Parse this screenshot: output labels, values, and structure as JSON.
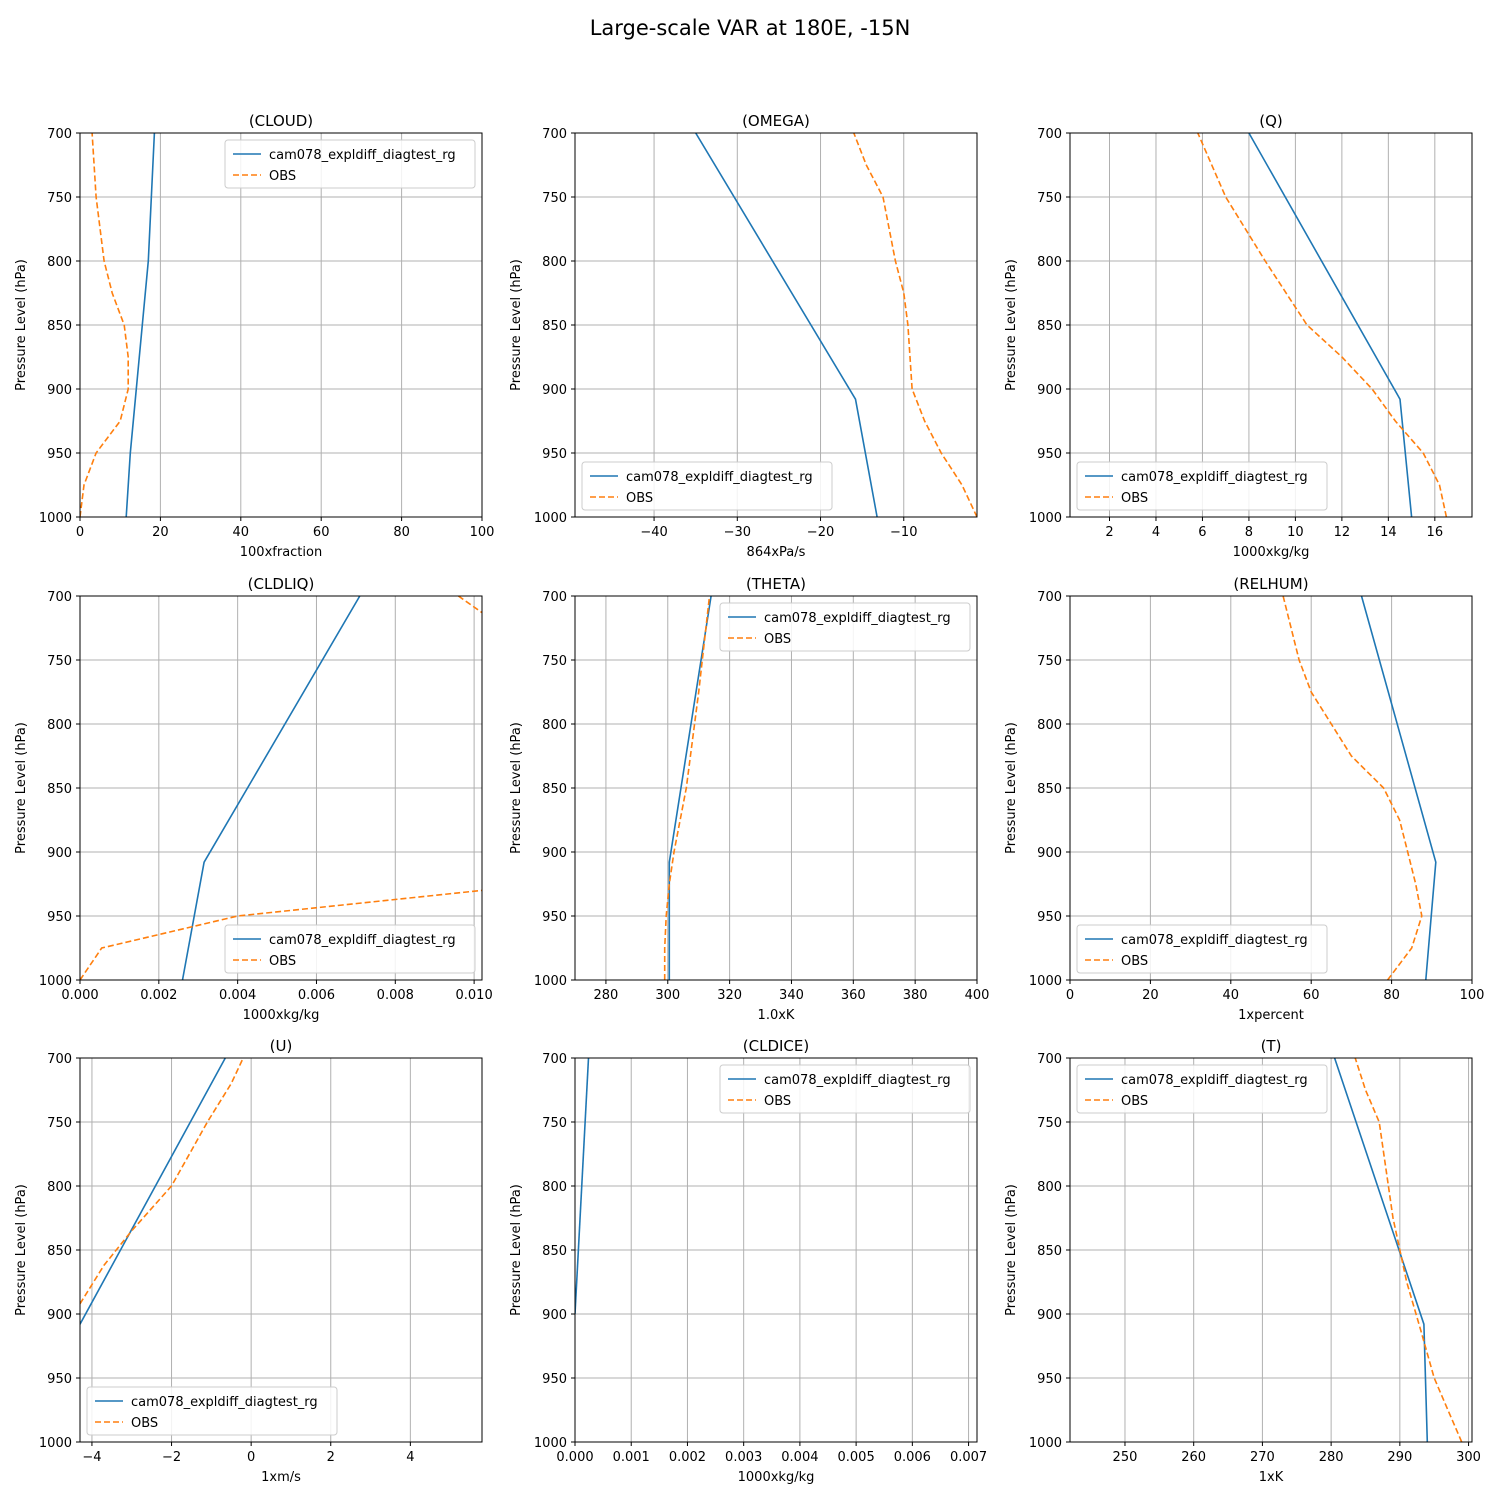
{
  "figure": {
    "title": "Large-scale VAR at 180E, -15N"
  },
  "colors": {
    "model": "#1f77b4",
    "obs": "#ff7f0e",
    "grid": "#b0b0b0"
  },
  "chart_data": [
    {
      "type": "line",
      "title": "(CLOUD)",
      "xlabel": "100xfraction",
      "ylabel": "Pressure Level (hPa)",
      "xlim": [
        0,
        100
      ],
      "xticks": [
        0,
        20,
        40,
        60,
        80,
        100
      ],
      "xtick_labels": [
        "0",
        "20",
        "40",
        "60",
        "80",
        "100"
      ],
      "ylim": [
        1000,
        700
      ],
      "yticks": [
        700,
        750,
        800,
        850,
        900,
        950,
        1000
      ],
      "grid": true,
      "legend": "upper right",
      "series": [
        {
          "name": "cam078_expldiff_diagtest_rg",
          "style": "solid",
          "color": "#1f77b4",
          "x": [
            11.5,
            12.5,
            14,
            15.5,
            17,
            18.5
          ],
          "y": [
            1000,
            950,
            900,
            850,
            800,
            700
          ]
        },
        {
          "name": "OBS",
          "style": "dashed",
          "color": "#ff7f0e",
          "x": [
            0,
            1,
            4,
            10,
            12,
            12,
            11,
            8,
            6,
            4,
            3.5,
            3
          ],
          "y": [
            1000,
            975,
            950,
            925,
            900,
            875,
            850,
            825,
            800,
            750,
            725,
            700
          ]
        }
      ]
    },
    {
      "type": "line",
      "title": "(OMEGA)",
      "xlabel": "864xPa/s",
      "ylabel": "Pressure Level (hPa)",
      "xlim": [
        -49.5,
        -1.2
      ],
      "xticks": [
        -40,
        -30,
        -20,
        -10
      ],
      "xtick_labels": [
        "−40",
        "−30",
        "−20",
        "−10"
      ],
      "ylim": [
        1000,
        700
      ],
      "yticks": [
        700,
        750,
        800,
        850,
        900,
        950,
        1000
      ],
      "grid": true,
      "legend": "lower left",
      "series": [
        {
          "name": "cam078_expldiff_diagtest_rg",
          "style": "solid",
          "color": "#1f77b4",
          "x": [
            -13.2,
            -15.8,
            -35
          ],
          "y": [
            1000,
            908,
            700
          ]
        },
        {
          "name": "OBS",
          "style": "dashed",
          "color": "#ff7f0e",
          "x": [
            -1.2,
            -3,
            -5.5,
            -7.5,
            -9,
            -9.5,
            -10,
            -11,
            -12.5,
            -14.5,
            -16
          ],
          "y": [
            1000,
            975,
            950,
            925,
            900,
            850,
            825,
            800,
            750,
            725,
            700
          ]
        }
      ]
    },
    {
      "type": "line",
      "title": "(Q)",
      "xlabel": "1000xkg/kg",
      "ylabel": "Pressure Level (hPa)",
      "xlim": [
        0.3,
        17.6
      ],
      "xticks": [
        2,
        4,
        6,
        8,
        10,
        12,
        14,
        16
      ],
      "xtick_labels": [
        "2",
        "4",
        "6",
        "8",
        "10",
        "12",
        "14",
        "16"
      ],
      "ylim": [
        1000,
        700
      ],
      "yticks": [
        700,
        750,
        800,
        850,
        900,
        950,
        1000
      ],
      "grid": true,
      "legend": "lower left",
      "series": [
        {
          "name": "cam078_expldiff_diagtest_rg",
          "style": "solid",
          "color": "#1f77b4",
          "x": [
            15.0,
            14.5,
            8.0
          ],
          "y": [
            1000,
            908,
            700
          ]
        },
        {
          "name": "OBS",
          "style": "dashed",
          "color": "#ff7f0e",
          "x": [
            16.5,
            16.2,
            15.5,
            14.3,
            13.3,
            12,
            10.5,
            8.7,
            7.0,
            5.8
          ],
          "y": [
            1000,
            975,
            950,
            925,
            900,
            875,
            850,
            800,
            750,
            700
          ]
        }
      ]
    },
    {
      "type": "line",
      "title": "(CLDLIQ)",
      "xlabel": "1000xkg/kg",
      "ylabel": "Pressure Level (hPa)",
      "xlim": [
        0,
        0.0102
      ],
      "xticks": [
        0,
        0.002,
        0.004,
        0.006,
        0.008,
        0.01
      ],
      "xtick_labels": [
        "0.000",
        "0.002",
        "0.004",
        "0.006",
        "0.008",
        "0.010"
      ],
      "ylim": [
        1000,
        700
      ],
      "yticks": [
        700,
        750,
        800,
        850,
        900,
        950,
        1000
      ],
      "grid": true,
      "legend": "lower right",
      "series": [
        {
          "name": "cam078_expldiff_diagtest_rg",
          "style": "solid",
          "color": "#1f77b4",
          "x": [
            0.0026,
            0.00315,
            0.0071
          ],
          "y": [
            1000,
            908,
            700
          ]
        },
        {
          "name": "OBS",
          "style": "dashed",
          "color": "#ff7f0e",
          "x": [
            0,
            0.00055,
            0.004,
            0.0102
          ],
          "y": [
            1000,
            975,
            950,
            930
          ]
        },
        {
          "name": "",
          "style": "dashed",
          "color": "#ff7f0e",
          "x": [
            0.0096,
            0.0102
          ],
          "y": [
            700,
            713
          ]
        }
      ]
    },
    {
      "type": "line",
      "title": "(THETA)",
      "xlabel": "1.0xK",
      "ylabel": "Pressure Level (hPa)",
      "xlim": [
        270,
        400
      ],
      "xticks": [
        280,
        300,
        320,
        340,
        360,
        380,
        400
      ],
      "xtick_labels": [
        "280",
        "300",
        "320",
        "340",
        "360",
        "380",
        "400"
      ],
      "ylim": [
        1000,
        700
      ],
      "yticks": [
        700,
        750,
        800,
        850,
        900,
        950,
        1000
      ],
      "grid": true,
      "legend": "upper right",
      "series": [
        {
          "name": "cam078_expldiff_diagtest_rg",
          "style": "solid",
          "color": "#1f77b4",
          "x": [
            300.5,
            300.5,
            314
          ],
          "y": [
            1000,
            908,
            700
          ]
        },
        {
          "name": "OBS",
          "style": "dashed",
          "color": "#ff7f0e",
          "x": [
            299,
            299,
            299.5,
            300.5,
            302,
            306,
            310,
            313.5
          ],
          "y": [
            1000,
            975,
            950,
            925,
            900,
            850,
            775,
            700
          ]
        }
      ]
    },
    {
      "type": "line",
      "title": "(RELHUM)",
      "xlabel": "1xpercent",
      "ylabel": "Pressure Level (hPa)",
      "xlim": [
        0,
        100
      ],
      "xticks": [
        0,
        20,
        40,
        60,
        80,
        100
      ],
      "xtick_labels": [
        "0",
        "20",
        "40",
        "60",
        "80",
        "100"
      ],
      "ylim": [
        1000,
        700
      ],
      "yticks": [
        700,
        750,
        800,
        850,
        900,
        950,
        1000
      ],
      "grid": true,
      "legend": "lower left",
      "series": [
        {
          "name": "cam078_expldiff_diagtest_rg",
          "style": "solid",
          "color": "#1f77b4",
          "x": [
            88.5,
            91,
            72.5
          ],
          "y": [
            1000,
            908,
            700
          ]
        },
        {
          "name": "OBS",
          "style": "dashed",
          "color": "#ff7f0e",
          "x": [
            79,
            85,
            87.5,
            86,
            84,
            82,
            78,
            70,
            65,
            60,
            57,
            53
          ],
          "y": [
            1000,
            975,
            950,
            925,
            900,
            875,
            850,
            825,
            800,
            775,
            750,
            700
          ]
        }
      ]
    },
    {
      "type": "line",
      "title": "(U)",
      "xlabel": "1xm/s",
      "ylabel": "Pressure Level (hPa)",
      "xlim": [
        -4.3,
        5.8
      ],
      "xticks": [
        -4,
        -2,
        0,
        2,
        4
      ],
      "xtick_labels": [
        "−4",
        "−2",
        "0",
        "2",
        "4"
      ],
      "ylim": [
        1000,
        700
      ],
      "yticks": [
        700,
        750,
        800,
        850,
        900,
        950,
        1000
      ],
      "grid": true,
      "legend": "lower left",
      "series": [
        {
          "name": "cam078_expldiff_diagtest_rg",
          "style": "solid",
          "color": "#1f77b4",
          "x": [
            -4.3,
            -0.65
          ],
          "y": [
            908,
            700
          ]
        },
        {
          "name": "OBS",
          "style": "dashed",
          "color": "#ff7f0e",
          "x": [
            -4.3,
            -3.7,
            -3.0,
            -2.0,
            -1.1,
            -0.5,
            -0.2
          ],
          "y": [
            892,
            862,
            835,
            800,
            750,
            720,
            700
          ]
        }
      ]
    },
    {
      "type": "line",
      "title": "(CLDICE)",
      "xlabel": "1000xkg/kg",
      "ylabel": "Pressure Level (hPa)",
      "xlim": [
        0,
        0.00715
      ],
      "xticks": [
        0,
        0.001,
        0.002,
        0.003,
        0.004,
        0.005,
        0.006,
        0.007
      ],
      "xtick_labels": [
        "0.000",
        "0.001",
        "0.002",
        "0.003",
        "0.004",
        "0.005",
        "0.006",
        "0.007"
      ],
      "ylim": [
        1000,
        700
      ],
      "yticks": [
        700,
        750,
        800,
        850,
        900,
        950,
        1000
      ],
      "grid": true,
      "legend": "upper right",
      "series": [
        {
          "name": "cam078_expldiff_diagtest_rg",
          "style": "solid",
          "color": "#1f77b4",
          "x": [
            0,
            0.00024
          ],
          "y": [
            900,
            700
          ]
        },
        {
          "name": "OBS",
          "style": "dashed",
          "color": "#ff7f0e",
          "x": [],
          "y": []
        }
      ]
    },
    {
      "type": "line",
      "title": "(T)",
      "xlabel": "1xK",
      "ylabel": "Pressure Level (hPa)",
      "xlim": [
        242,
        300.5
      ],
      "xticks": [
        250,
        260,
        270,
        280,
        290,
        300
      ],
      "xtick_labels": [
        "250",
        "260",
        "270",
        "280",
        "290",
        "300"
      ],
      "ylim": [
        1000,
        700
      ],
      "yticks": [
        700,
        750,
        800,
        850,
        900,
        950,
        1000
      ],
      "grid": true,
      "legend": "upper left",
      "series": [
        {
          "name": "cam078_expldiff_diagtest_rg",
          "style": "solid",
          "color": "#1f77b4",
          "x": [
            294,
            293.5,
            280.5
          ],
          "y": [
            1000,
            908,
            700
          ]
        },
        {
          "name": "OBS",
          "style": "dashed",
          "color": "#ff7f0e",
          "x": [
            299,
            297,
            295,
            293,
            291,
            289,
            287,
            285,
            283.5
          ],
          "y": [
            1000,
            975,
            950,
            912,
            875,
            825,
            750,
            725,
            700
          ]
        }
      ]
    }
  ]
}
